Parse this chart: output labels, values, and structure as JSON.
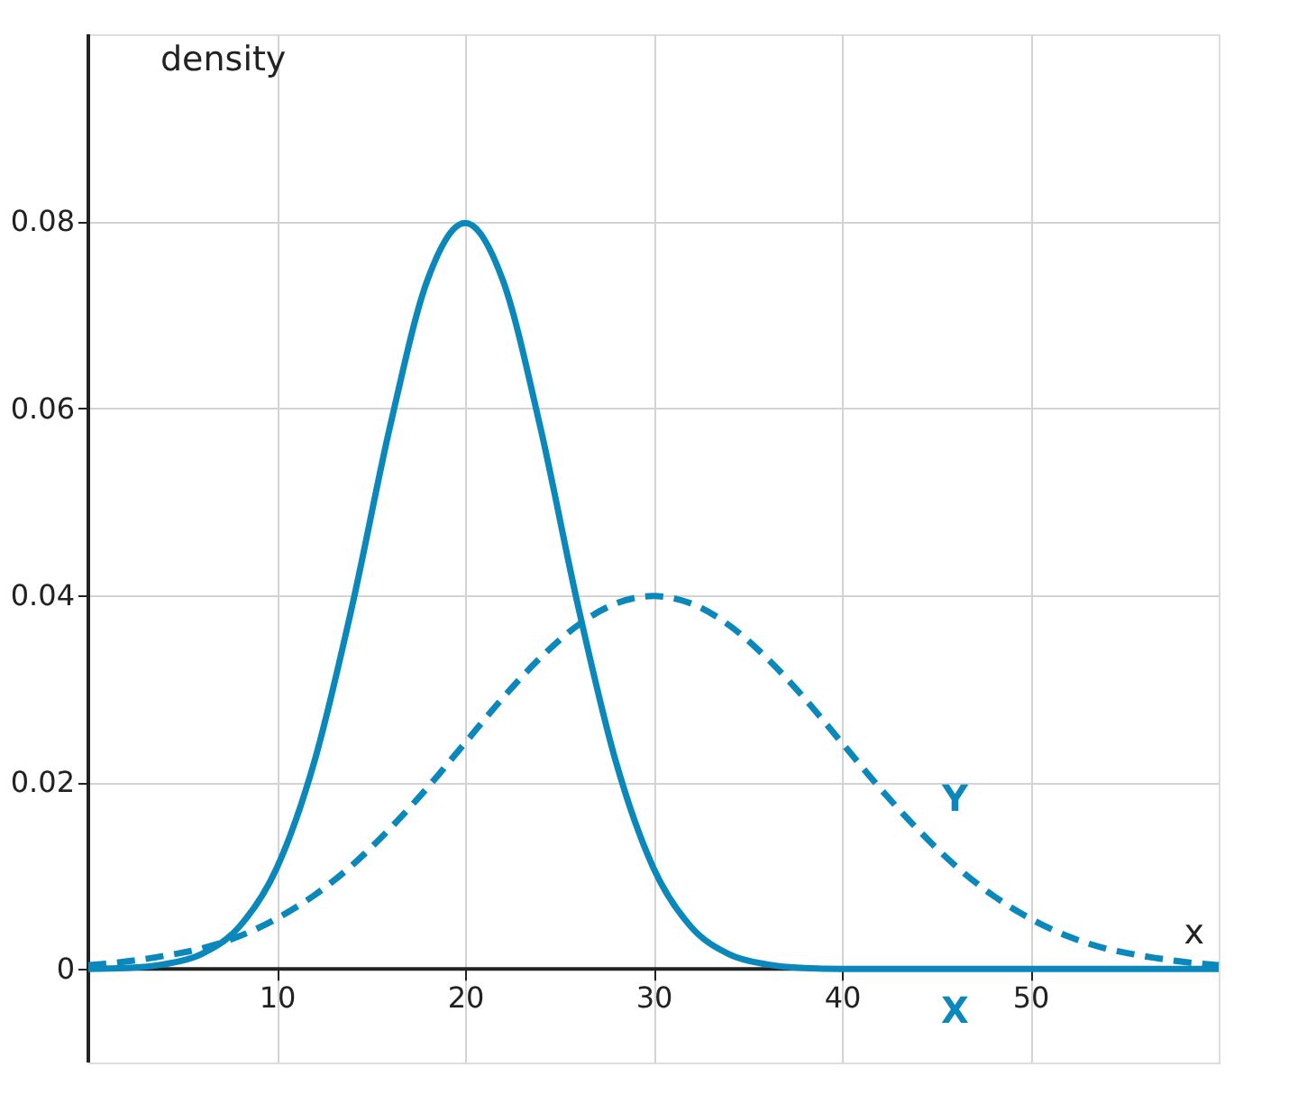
{
  "chart_data": {
    "type": "line",
    "xlabel": "x",
    "ylabel": "density",
    "xlim": [
      0,
      60
    ],
    "ylim": [
      -0.01,
      0.1
    ],
    "xticks": [
      10,
      20,
      30,
      40,
      50
    ],
    "yticks": [
      {
        "value": 0,
        "label": "0"
      },
      0.02,
      0.04,
      0.06,
      0.08
    ],
    "grid": true,
    "marker": "none",
    "x": [
      0,
      2,
      4,
      6,
      8,
      10,
      12,
      14,
      16,
      18,
      20,
      22,
      24,
      26,
      28,
      30,
      32,
      34,
      36,
      38,
      40,
      42,
      44,
      46,
      48,
      50,
      52,
      54,
      56,
      58,
      60
    ],
    "series": [
      {
        "name": "X",
        "color": "#0a88bb",
        "line_style": "solid",
        "values": [
          0.0,
          0.0001,
          0.0005,
          0.0016,
          0.0045,
          0.0108,
          0.0222,
          0.0388,
          0.0579,
          0.0737,
          0.0798,
          0.0737,
          0.0579,
          0.0388,
          0.0222,
          0.0108,
          0.0045,
          0.0016,
          0.0005,
          0.0001,
          0,
          0,
          0,
          0,
          0,
          0,
          0,
          0,
          0,
          0,
          0
        ]
      },
      {
        "name": "Y",
        "color": "#0a88bb",
        "line_style": "dashed",
        "values": [
          0.0004,
          0.0008,
          0.0014,
          0.0022,
          0.0035,
          0.0054,
          0.0079,
          0.0111,
          0.015,
          0.0194,
          0.0242,
          0.029,
          0.0333,
          0.0368,
          0.0391,
          0.0399,
          0.0391,
          0.0368,
          0.0333,
          0.029,
          0.0242,
          0.0194,
          0.015,
          0.0111,
          0.0079,
          0.0054,
          0.0035,
          0.0022,
          0.0014,
          0.0008,
          0.0004
        ]
      }
    ]
  }
}
